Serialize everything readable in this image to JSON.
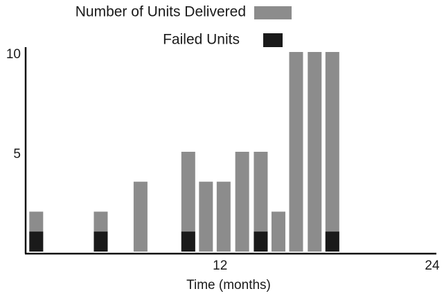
{
  "chart_data": {
    "type": "bar",
    "x": [
      1.6,
      5.25,
      7.5,
      10.2,
      11.2,
      12.2,
      13.25,
      14.3,
      15.3,
      16.3,
      17.35,
      18.35
    ],
    "series": [
      {
        "name": "Number of Units Delivered",
        "color": "#8c8c8c",
        "values": [
          2,
          2,
          3.5,
          5,
          3.5,
          3.5,
          5,
          5,
          2,
          10,
          10,
          10
        ]
      },
      {
        "name": "Failed Units",
        "color": "#1a1a1a",
        "values": [
          1,
          1,
          null,
          1,
          null,
          null,
          null,
          1,
          null,
          null,
          null,
          1
        ]
      }
    ],
    "x_label": "Time (months)",
    "xlim": [
      1,
      24
    ],
    "xticks": [
      12,
      24
    ],
    "ylim": [
      0,
      10
    ],
    "yticks": [
      5,
      10
    ],
    "overlay": true
  }
}
